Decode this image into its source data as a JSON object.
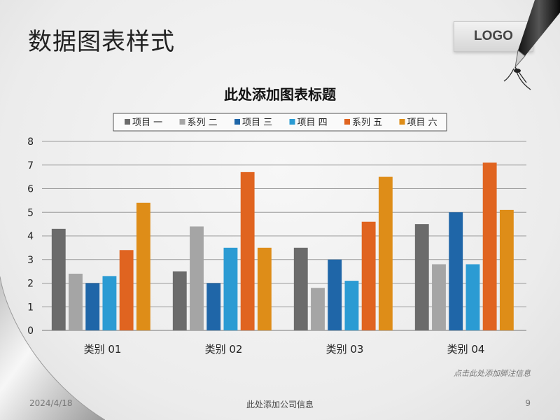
{
  "slide": {
    "title": "数据图表样式",
    "logo": "LOGO",
    "footnote": "点击此处添加脚注信息",
    "footer": {
      "date": "2024/4/18",
      "company": "此处添加公司信息",
      "page": "9"
    }
  },
  "chart_data": {
    "type": "bar",
    "title": "此处添加图表标题",
    "categories": [
      "类别 01",
      "类别 02",
      "类别 03",
      "类别 04"
    ],
    "series": [
      {
        "name": "项目 一",
        "color": "#6b6b6b",
        "values": [
          4.3,
          2.5,
          3.5,
          4.5
        ]
      },
      {
        "name": "系列 二",
        "color": "#a5a5a5",
        "values": [
          2.4,
          4.4,
          1.8,
          2.8
        ]
      },
      {
        "name": "项目 三",
        "color": "#1f66a8",
        "values": [
          2.0,
          2.0,
          3.0,
          5.0
        ]
      },
      {
        "name": "项目 四",
        "color": "#2b9bd3",
        "values": [
          2.3,
          3.5,
          2.1,
          2.8
        ]
      },
      {
        "name": "系列 五",
        "color": "#e06420",
        "values": [
          3.4,
          6.7,
          4.6,
          7.1
        ]
      },
      {
        "name": "项目 六",
        "color": "#de8d18",
        "values": [
          5.4,
          3.5,
          6.5,
          5.1
        ]
      }
    ],
    "ylim": [
      0,
      8
    ],
    "yticks": [
      0,
      1,
      2,
      3,
      4,
      5,
      6,
      7,
      8
    ],
    "grid": true,
    "legend": "top"
  }
}
